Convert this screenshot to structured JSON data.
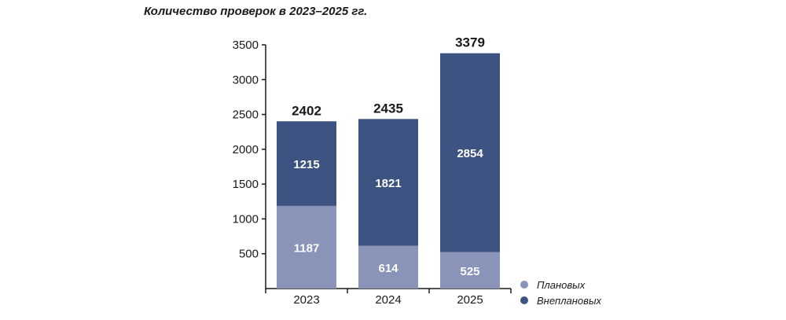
{
  "chart_data": {
    "type": "bar",
    "stacked": true,
    "title": "Количество проверок в 2023–2025 гг.",
    "categories": [
      "2023",
      "2024",
      "2025"
    ],
    "series": [
      {
        "name": "Плановых",
        "values": [
          1187,
          614,
          525
        ],
        "color": "#8a93b8"
      },
      {
        "name": "Внеплановых",
        "values": [
          1215,
          1821,
          2854
        ],
        "color": "#3d5483"
      }
    ],
    "totals": [
      2402,
      2435,
      3379
    ],
    "yticks": [
      500,
      1000,
      1500,
      2000,
      2500,
      3000,
      3500
    ],
    "ylim": [
      0,
      3500
    ],
    "legend_position": "bottom-right",
    "grid": false,
    "axis_color": "#1a1a1a"
  }
}
